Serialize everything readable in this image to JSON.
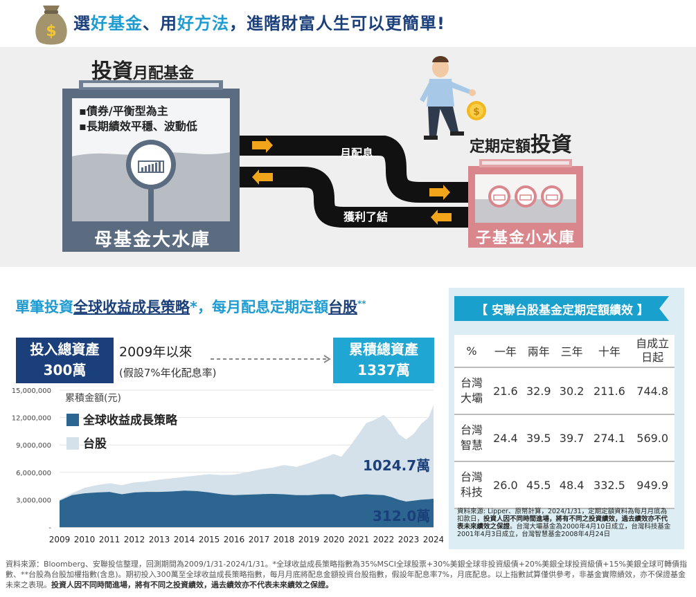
{
  "header": {
    "headline_pre": "選",
    "headline_hl1": "好基金",
    "headline_mid": "、用",
    "headline_hl2": "好方法",
    "headline_post": "，進階財富人生可以更簡單!",
    "money_icon": "money-bag-icon"
  },
  "illustration": {
    "mother_title_big": "投資",
    "mother_title_small": "月配基金",
    "mother_bullets": [
      "▪債券/平衡型為主",
      "▪長期績效平穩、波動低"
    ],
    "mother_label": "母基金大水庫",
    "pipe_top_label": "月配息",
    "pipe_bottom_label": "獲利了結",
    "child_title_small": "定期定額",
    "child_title_big": "投資",
    "child_label": "子基金小水庫",
    "colors": {
      "mother_tank": "#5b6b80",
      "child_tank": "#d9878c",
      "pipe": "#111111",
      "arrow": "#f2a51a"
    }
  },
  "subtitle": {
    "part1": "單筆投資",
    "part2": "全球收益成長策略",
    "part3": "*，每月配息定期定額",
    "part4": "台股",
    "part5": "**"
  },
  "flow": {
    "invest_line1": "投入總資產",
    "invest_line2": "300萬",
    "since": "2009年以來",
    "assumption": "(假設7%年化配息率)",
    "accum_line1": "累積總資產",
    "accum_line2": "1337萬"
  },
  "chart_data": {
    "type": "area",
    "ylabel": "累積金額(元)",
    "ylim": [
      0,
      15000000
    ],
    "yticks": [
      "15,000,000",
      "12,000,000",
      "9,000,000",
      "6,000,000",
      "3,000,000",
      "-"
    ],
    "ytick_values": [
      15000000,
      12000000,
      9000000,
      6000000,
      3000000,
      0
    ],
    "xticks": [
      "2009",
      "2010",
      "2011",
      "2012",
      "2013",
      "2014",
      "2015",
      "2016",
      "2017",
      "2018",
      "2019",
      "2020",
      "2021",
      "2022",
      "2023",
      "2024"
    ],
    "legend_placement": "top-left",
    "series": [
      {
        "name": "台股",
        "color": "#d4e0ea",
        "x": [
          2009.0,
          2009.5,
          2010.0,
          2010.5,
          2011.0,
          2011.5,
          2012.0,
          2012.5,
          2013.0,
          2013.5,
          2014.0,
          2014.5,
          2015.0,
          2015.5,
          2016.0,
          2016.5,
          2017.0,
          2017.5,
          2018.0,
          2018.5,
          2019.0,
          2019.5,
          2020.0,
          2020.3,
          2020.6,
          2021.0,
          2021.3,
          2021.6,
          2022.0,
          2022.3,
          2022.6,
          2022.9,
          2023.2,
          2023.5,
          2023.8,
          2024.0
        ],
        "values": [
          3000000,
          3700000,
          4300000,
          4600000,
          4800000,
          4600000,
          4900000,
          5000000,
          5200000,
          5350000,
          5500000,
          5650000,
          5800000,
          5700000,
          5750000,
          6000000,
          6300000,
          6500000,
          6800000,
          6600000,
          7000000,
          7500000,
          8000000,
          7700000,
          8700000,
          10200000,
          11400000,
          11700000,
          12300000,
          11500000,
          10200000,
          9600000,
          10200000,
          11300000,
          12000000,
          13370000
        ]
      },
      {
        "name": "全球收益成長策略",
        "color": "#2b6590",
        "x": [
          2009.0,
          2009.5,
          2010.0,
          2010.5,
          2011.0,
          2011.5,
          2012.0,
          2012.5,
          2013.0,
          2013.5,
          2014.0,
          2014.5,
          2015.0,
          2015.5,
          2016.0,
          2016.5,
          2017.0,
          2017.5,
          2018.0,
          2018.5,
          2019.0,
          2019.5,
          2020.0,
          2020.3,
          2020.6,
          2021.0,
          2021.3,
          2021.6,
          2022.0,
          2022.3,
          2022.6,
          2022.9,
          2023.2,
          2023.5,
          2023.8,
          2024.0
        ],
        "values": [
          2900000,
          3500000,
          3700000,
          3800000,
          3850000,
          3600000,
          3800000,
          3850000,
          3850000,
          3900000,
          4000000,
          3950000,
          3800000,
          3600000,
          3500000,
          3550000,
          3600000,
          3650000,
          3600000,
          3500000,
          3500000,
          3600000,
          3600000,
          3300000,
          3450000,
          3550000,
          3600000,
          3550000,
          3500000,
          3300000,
          3000000,
          2800000,
          2900000,
          3000000,
          3050000,
          3120000
        ]
      }
    ],
    "annotations": [
      "1024.7萬",
      "312.0萬"
    ]
  },
  "table": {
    "banner": "【 安聯台股基金定期定額績效 】",
    "headers": [
      "%",
      "一年",
      "兩年",
      "三年",
      "十年",
      "自成立日起"
    ],
    "header_last_line1": "自成立",
    "header_last_line2": "日起",
    "rows": [
      {
        "name1": "台灣",
        "name2": "大壩",
        "values": [
          "21.6",
          "32.9",
          "30.2",
          "211.6",
          "744.8"
        ]
      },
      {
        "name1": "台灣",
        "name2": "智慧",
        "values": [
          "24.4",
          "39.5",
          "39.7",
          "274.1",
          "569.0"
        ]
      },
      {
        "name1": "台灣",
        "name2": "科技",
        "values": [
          "26.0",
          "45.5",
          "48.4",
          "332.5",
          "949.9"
        ]
      }
    ],
    "note_pre": "資料來源: Lipper、原幣計算，2024/1/31，定期定額資料為每月月底為扣款日，",
    "note_bold": "投資人因不同時間進場，將有不同之投資績效，過去績效亦不代表未來績效之保證",
    "note_post": "。台灣大壩基金為2000年4月10日成立，台灣科技基金2001年4月3日成立，台灣智慧基金2008年4月24日",
    "banner_color": "#1aa0cc"
  },
  "footer": {
    "text_pre": "資料來源：Bloomberg、安聯投信整理，回測期間為2009/1/31-2024/1/31。*全球收益成長策略指數為35%MSCI全球股票+30%美銀全球非投資級債+20%美銀全球投資級債+15%美銀全球可轉債指數、**台股為台股加權指數(含息)。期初投入300萬至全球收益成長策略指數，每月月底將配息金額投資台股指數，假設年配息率7%，月底配息。以上指數試算僅供參考，非基金實際績效，亦不保證基金未來之表現。",
    "text_bold": "投資人因不同時間進場，將有不同之投資績效，過去績效亦不代表未來績效之保證。"
  }
}
